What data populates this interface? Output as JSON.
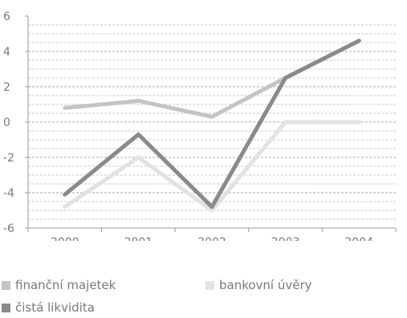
{
  "chart_data": {
    "type": "line",
    "x": [
      "2000",
      "2001",
      "2002",
      "2003",
      "2004"
    ],
    "ylim": [
      -6,
      6
    ],
    "yticks": [
      "6",
      "4",
      "2",
      "0",
      "-2",
      "-4",
      "-6"
    ],
    "grid": "dashed horizontal minor lines",
    "legend_position": "bottom",
    "series": [
      {
        "name": "finanční majetek",
        "color": "#c4c4c4",
        "values": [
          0.8,
          1.2,
          0.3,
          2.5,
          4.6
        ]
      },
      {
        "name": "bankovní úvěry",
        "color": "#e2e2e2",
        "values": [
          -4.8,
          -2.0,
          -5.0,
          0.0,
          0.0
        ]
      },
      {
        "name": "čistá likvidita",
        "color": "#8a8a8a",
        "values": [
          -4.1,
          -0.7,
          -4.8,
          2.5,
          4.6
        ]
      }
    ]
  }
}
